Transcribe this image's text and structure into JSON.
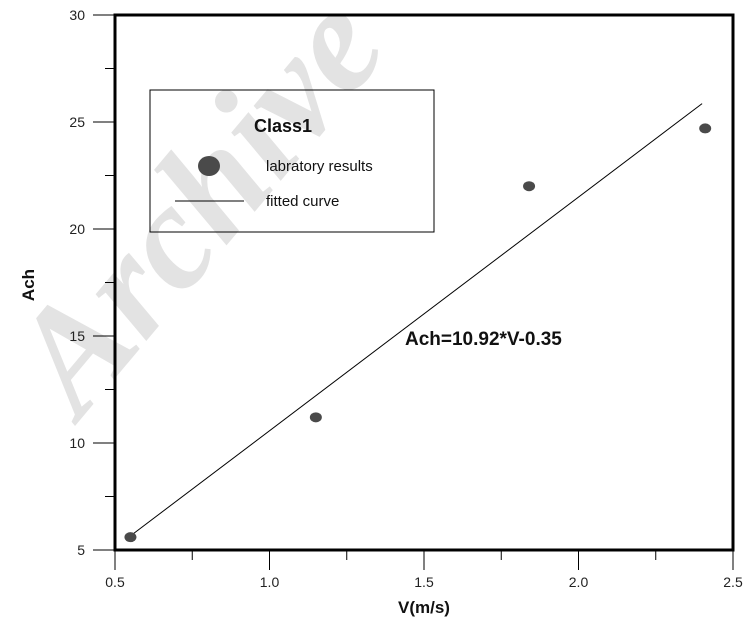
{
  "chart_data": {
    "type": "scatter",
    "xlabel": "V(m/s)",
    "ylabel": "Ach",
    "xlim": [
      0.5,
      2.5
    ],
    "ylim": [
      5,
      30
    ],
    "x_ticks": [
      0.5,
      1.0,
      1.5,
      2.0,
      2.5
    ],
    "x_tick_labels": [
      "0.5",
      "1.0",
      "1.5",
      "2.0",
      "2.5"
    ],
    "y_ticks": [
      5,
      10,
      15,
      20,
      25,
      30
    ],
    "y_tick_labels": [
      "5",
      "10",
      "15",
      "20",
      "25",
      "30"
    ],
    "grid": false,
    "legend": {
      "placement": "top-left",
      "title": "Class1",
      "entries": [
        "labratory results",
        "fitted curve"
      ]
    },
    "series": [
      {
        "name": "labratory results",
        "kind": "scatter",
        "color": "#4a4a4a",
        "points": [
          {
            "x": 0.55,
            "y": 5.6
          },
          {
            "x": 1.15,
            "y": 11.2
          },
          {
            "x": 1.84,
            "y": 22.0
          },
          {
            "x": 2.41,
            "y": 24.7
          }
        ]
      },
      {
        "name": "fitted curve",
        "kind": "line",
        "color": "#000000",
        "points": [
          {
            "x": 0.55,
            "y": 5.66
          },
          {
            "x": 2.4,
            "y": 25.86
          }
        ]
      }
    ],
    "annotations": [
      "Ach=10.92*V-0.35"
    ]
  },
  "watermark": "Archive"
}
